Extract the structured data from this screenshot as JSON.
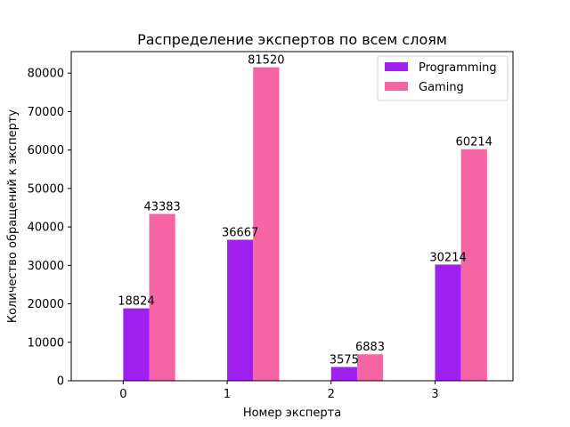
{
  "chart_data": {
    "type": "bar",
    "title": "Распределение экспертов по всем слоям",
    "xlabel": "Номер эксперта",
    "ylabel": "Количество обращений к эксперту",
    "categories": [
      "0",
      "1",
      "2",
      "3"
    ],
    "series": [
      {
        "name": "Programming",
        "color": "#a020f0",
        "values": [
          18824,
          36667,
          3575,
          30214
        ]
      },
      {
        "name": "Gaming",
        "color": "#f564a3",
        "values": [
          43383,
          81520,
          6883,
          60214
        ]
      }
    ],
    "ylim": [
      0,
      85596
    ],
    "yticks": [
      0,
      10000,
      20000,
      30000,
      40000,
      50000,
      60000,
      70000,
      80000
    ],
    "grid": false,
    "legend_position": "top-right"
  }
}
